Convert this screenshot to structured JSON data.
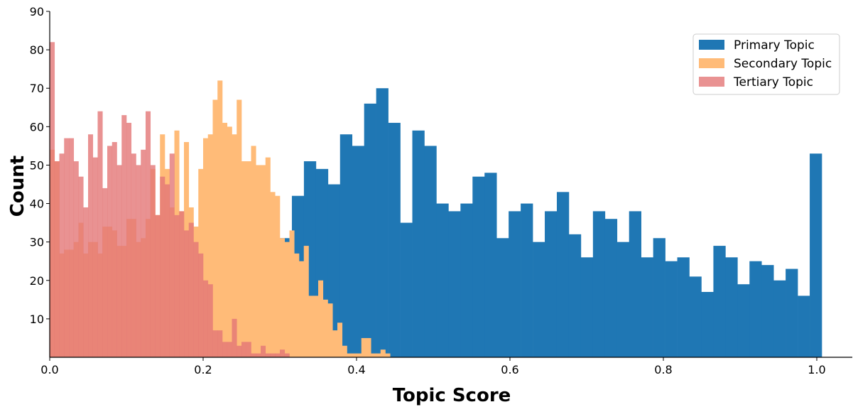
{
  "chart_data": {
    "type": "bar",
    "subtype": "overlaid-histogram",
    "xlabel": "Topic Score",
    "ylabel": "Count",
    "xlim": [
      0.0,
      1.0
    ],
    "ylim": [
      0,
      90
    ],
    "x_ticks": [
      0.0,
      0.2,
      0.4,
      0.6,
      0.8,
      1.0
    ],
    "x_tick_labels": [
      "0.0",
      "0.2",
      "0.4",
      "0.6",
      "0.8",
      "1.0"
    ],
    "y_ticks": [
      10,
      20,
      30,
      40,
      50,
      60,
      70,
      80,
      90
    ],
    "y_tick_labels": [
      "10",
      "20",
      "30",
      "40",
      "50",
      "60",
      "70",
      "80",
      "90"
    ],
    "grid": false,
    "legend_position": "top-right",
    "series": [
      {
        "name": "Primary Topic",
        "color": "#1f77b4",
        "alpha": 1.0,
        "bin_width": 0.0157,
        "bin_starts": [
          0.3,
          0.3157,
          0.3314,
          0.3471,
          0.3628,
          0.3785,
          0.3942,
          0.4099,
          0.4256,
          0.4413,
          0.457,
          0.4727,
          0.4884,
          0.5041,
          0.5198,
          0.5355,
          0.5512,
          0.5669,
          0.5826,
          0.5983,
          0.614,
          0.6297,
          0.6454,
          0.6611,
          0.6768,
          0.6925,
          0.7082,
          0.7239,
          0.7396,
          0.7553,
          0.771,
          0.7867,
          0.8024,
          0.8181,
          0.8338,
          0.8495,
          0.8652,
          0.8809,
          0.8966,
          0.9123,
          0.928,
          0.9437,
          0.9594,
          0.9751,
          0.9908
        ],
        "values": [
          31,
          42,
          51,
          49,
          45,
          58,
          55,
          66,
          70,
          61,
          35,
          59,
          55,
          40,
          38,
          40,
          47,
          48,
          31,
          38,
          40,
          30,
          38,
          43,
          32,
          26,
          38,
          36,
          30,
          38,
          26,
          31,
          25,
          26,
          21,
          17,
          29,
          26,
          19,
          25,
          24,
          20,
          23,
          16,
          53
        ]
      },
      {
        "name": "Secondary Topic",
        "color": "#ffbb78",
        "alpha": 1.0,
        "bin_width": 0.00625,
        "bin_starts": [
          0.0,
          0.00625,
          0.0125,
          0.01875,
          0.025,
          0.03125,
          0.0375,
          0.04375,
          0.05,
          0.05625,
          0.0625,
          0.06875,
          0.075,
          0.08125,
          0.0875,
          0.09375,
          0.1,
          0.10625,
          0.1125,
          0.11875,
          0.125,
          0.13125,
          0.1375,
          0.14375,
          0.15,
          0.15625,
          0.1625,
          0.16875,
          0.175,
          0.18125,
          0.1875,
          0.19375,
          0.2,
          0.20625,
          0.2125,
          0.21875,
          0.225,
          0.23125,
          0.2375,
          0.24375,
          0.25,
          0.25625,
          0.2625,
          0.26875,
          0.275,
          0.28125,
          0.2875,
          0.29375,
          0.3,
          0.30625,
          0.3125,
          0.31875,
          0.325,
          0.33125,
          0.3375,
          0.34375,
          0.35,
          0.35625,
          0.3625,
          0.36875,
          0.375,
          0.38125,
          0.3875,
          0.39375,
          0.4,
          0.40625,
          0.4125,
          0.41875,
          0.425,
          0.43125,
          0.4375,
          0.44375,
          0.45,
          0.45625,
          0.4625,
          0.46875,
          0.475
        ],
        "values": [
          54,
          51,
          27,
          28,
          28,
          30,
          35,
          27,
          30,
          30,
          27,
          34,
          34,
          33,
          29,
          29,
          36,
          36,
          30,
          31,
          36,
          49,
          37,
          58,
          49,
          39,
          59,
          38,
          56,
          39,
          34,
          49,
          57,
          58,
          67,
          72,
          61,
          60,
          58,
          67,
          51,
          51,
          55,
          50,
          50,
          52,
          43,
          42,
          31,
          30,
          33,
          27,
          25,
          29,
          16,
          16,
          20,
          15,
          14,
          7,
          9,
          3,
          1,
          1,
          1,
          5,
          5,
          1,
          1,
          2,
          1,
          0,
          0,
          0,
          0,
          0,
          0
        ]
      },
      {
        "name": "Tertiary Topic",
        "color": "#e37777",
        "alpha": 0.8,
        "bin_width": 0.00625,
        "bin_starts": [
          0.0,
          0.00625,
          0.0125,
          0.01875,
          0.025,
          0.03125,
          0.0375,
          0.04375,
          0.05,
          0.05625,
          0.0625,
          0.06875,
          0.075,
          0.08125,
          0.0875,
          0.09375,
          0.1,
          0.10625,
          0.1125,
          0.11875,
          0.125,
          0.13125,
          0.1375,
          0.14375,
          0.15,
          0.15625,
          0.1625,
          0.16875,
          0.175,
          0.18125,
          0.1875,
          0.19375,
          0.2,
          0.20625,
          0.2125,
          0.21875,
          0.225,
          0.23125,
          0.2375,
          0.24375,
          0.25,
          0.25625,
          0.2625,
          0.26875,
          0.275,
          0.28125,
          0.2875,
          0.29375,
          0.3,
          0.30625
        ],
        "values": [
          82,
          51,
          53,
          57,
          57,
          51,
          47,
          39,
          58,
          52,
          64,
          44,
          55,
          56,
          50,
          63,
          61,
          53,
          50,
          54,
          64,
          50,
          37,
          47,
          45,
          53,
          37,
          38,
          33,
          35,
          30,
          27,
          20,
          19,
          7,
          7,
          4,
          4,
          10,
          3,
          4,
          4,
          1,
          1,
          3,
          1,
          1,
          1,
          2,
          1
        ]
      }
    ]
  },
  "colors": {
    "axis": "#000000",
    "background": "#ffffff"
  }
}
